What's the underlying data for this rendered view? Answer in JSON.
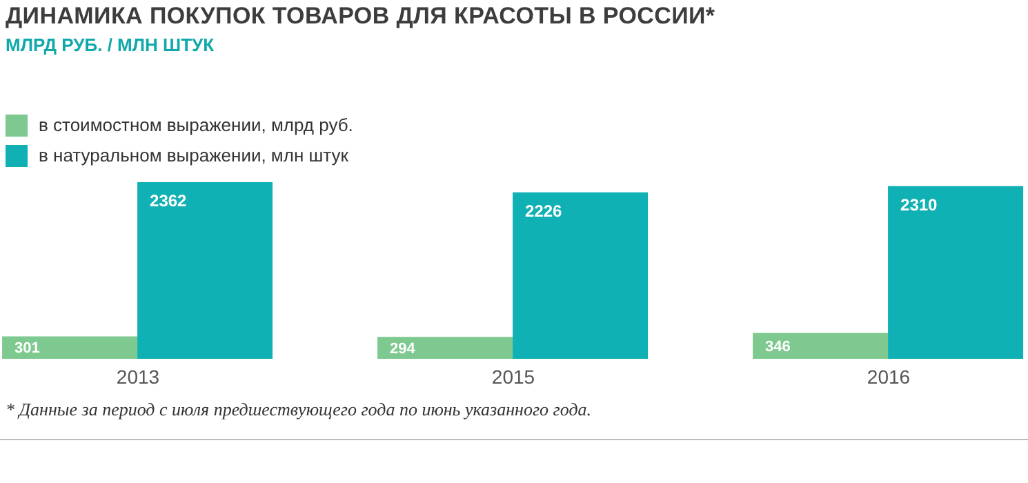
{
  "chart_data": {
    "type": "bar",
    "title": "ДИНАМИКА ПОКУПОК ТОВАРОВ ДЛЯ КРАСОТЫ В РОССИИ*",
    "subtitle": "МЛРД РУБ. / МЛН ШТУК",
    "categories": [
      "2013",
      "2015",
      "2016"
    ],
    "series": [
      {
        "name": "в стоимостном выражении, млрд руб.",
        "color": "#7dc98f",
        "values": [
          301,
          294,
          346
        ]
      },
      {
        "name": "в натуральном выражении, млн штук",
        "color": "#0fb1b4",
        "values": [
          2362,
          2226,
          2310
        ]
      }
    ],
    "data_labels": true,
    "legend": "top left",
    "grid": false,
    "annotations": [
      "* Данные за период с июля предшествующего года по июнь указанного года."
    ]
  }
}
